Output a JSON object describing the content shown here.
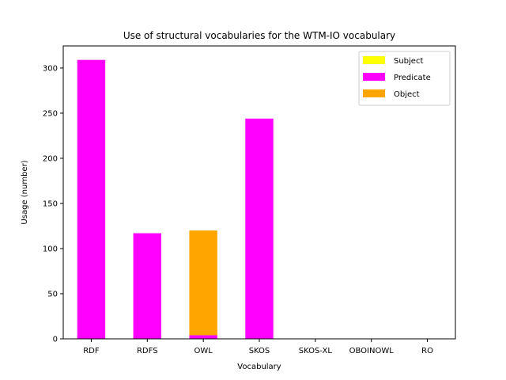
{
  "chart_data": {
    "type": "bar",
    "stacked": true,
    "title": "Use of structural vocabularies for the WTM-IO vocabulary",
    "xlabel": "Vocabulary",
    "ylabel": "Usage (number)",
    "categories": [
      "RDF",
      "RDFS",
      "OWL",
      "SKOS",
      "SKOS-XL",
      "OBOINOWL",
      "RO"
    ],
    "series": [
      {
        "name": "Subject",
        "color": "#ffff00",
        "values": [
          0,
          0,
          0,
          0,
          0,
          0,
          0
        ]
      },
      {
        "name": "Predicate",
        "color": "#ff00ff",
        "values": [
          309,
          117,
          4,
          244,
          0,
          0,
          0
        ]
      },
      {
        "name": "Object",
        "color": "#ffa500",
        "values": [
          0,
          0,
          116,
          0,
          0,
          0,
          0
        ]
      }
    ],
    "yticks": [
      0,
      50,
      100,
      150,
      200,
      250,
      300
    ],
    "ylim": [
      0,
      324.5
    ],
    "grid": false,
    "legend": "top-right"
  }
}
